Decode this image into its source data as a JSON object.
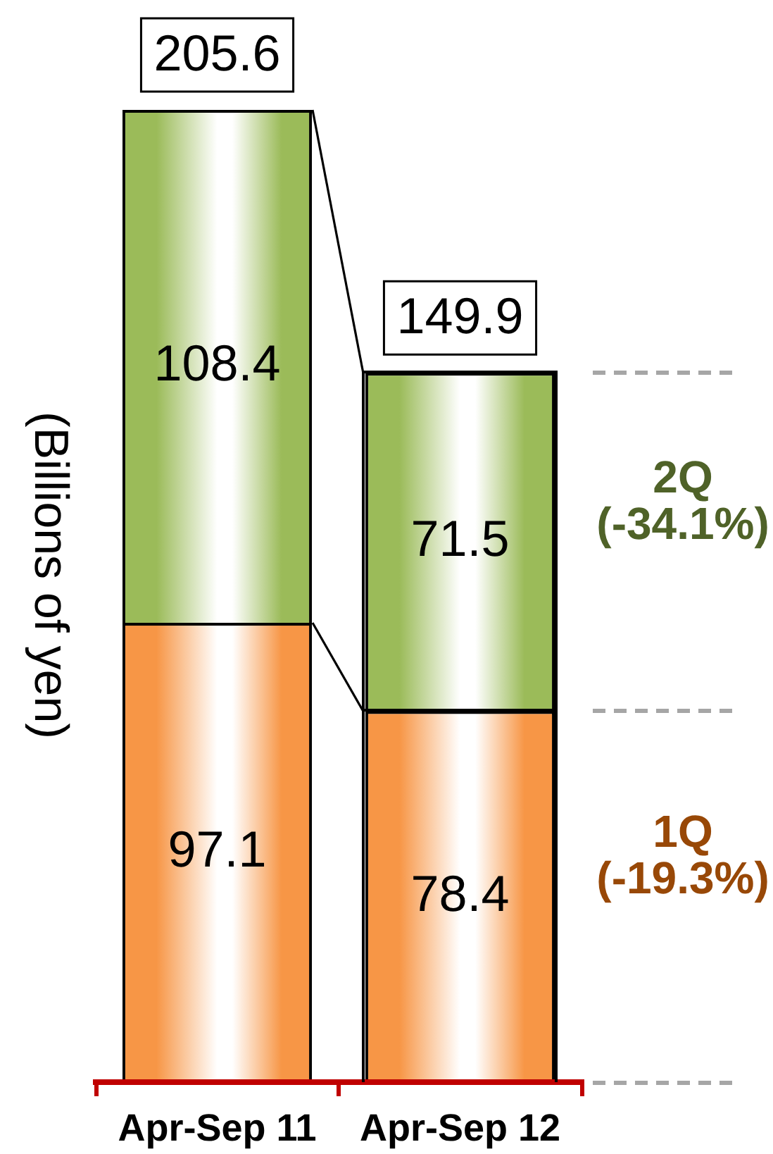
{
  "chart_data": {
    "type": "bar",
    "stacked": true,
    "ylabel": "(Billions of yen)",
    "categories": [
      "Apr-Sep 11",
      "Apr-Sep 12"
    ],
    "series": [
      {
        "name": "1Q",
        "color": "#f79646",
        "values": [
          97.1,
          78.4
        ]
      },
      {
        "name": "2Q",
        "color": "#9bbb59",
        "values": [
          108.4,
          71.5
        ]
      }
    ],
    "data_labels": true,
    "totals": [
      "205.6",
      "149.9"
    ],
    "annotations": [
      "(-19.3%)",
      "(-34.1%)"
    ]
  }
}
